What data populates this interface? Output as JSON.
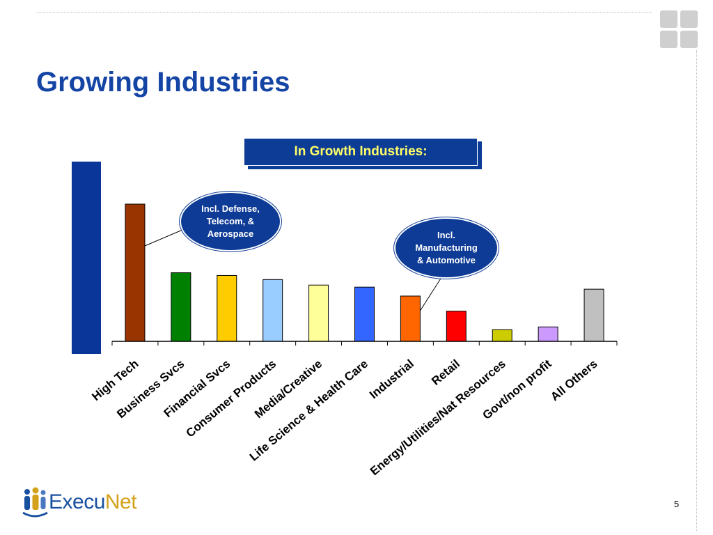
{
  "slide": {
    "title": "Growing Industries",
    "page_number": "5"
  },
  "growth_box": {
    "label": "In Growth Industries:"
  },
  "callouts": [
    {
      "text": "Incl. Defense,\nTelecom, &\nAerospace",
      "points_to": "High Tech"
    },
    {
      "text": "Incl.\nManufacturing\n& Automotive",
      "points_to": "Industrial"
    }
  ],
  "logo": {
    "part1": "Execu",
    "part2": "Net"
  },
  "colors": {
    "title": "#1444a4",
    "navy": "#0d3c96",
    "growth_box_text": "#ffff66"
  },
  "chart_data": {
    "type": "bar",
    "title": "",
    "xlabel": "",
    "ylabel": "",
    "grid": false,
    "legend": "none",
    "ylim": [
      0,
      100
    ],
    "categories": [
      "High Tech",
      "Business Svcs",
      "Financial Svcs",
      "Consumer Products",
      "Media/Creative",
      "Life Science & Health Care",
      "Industrial",
      "Retail",
      "Energy/Utilities/Nat Resources",
      "Govt/non profit",
      "All Others"
    ],
    "values": [
      100,
      50,
      48,
      45,
      41,
      39.5,
      33,
      22,
      8.5,
      10.5,
      38
    ],
    "colors": [
      "#993300",
      "#008000",
      "#ffcc00",
      "#99ccff",
      "#ffff99",
      "#3366ff",
      "#ff6600",
      "#ff0000",
      "#cccc00",
      "#cc99ff",
      "#c0c0c0"
    ],
    "growth_bracket": [
      "High Tech",
      "Business Svcs",
      "Financial Svcs",
      "Consumer Products",
      "Media/Creative",
      "Life Science & Health Care",
      "Industrial"
    ]
  }
}
